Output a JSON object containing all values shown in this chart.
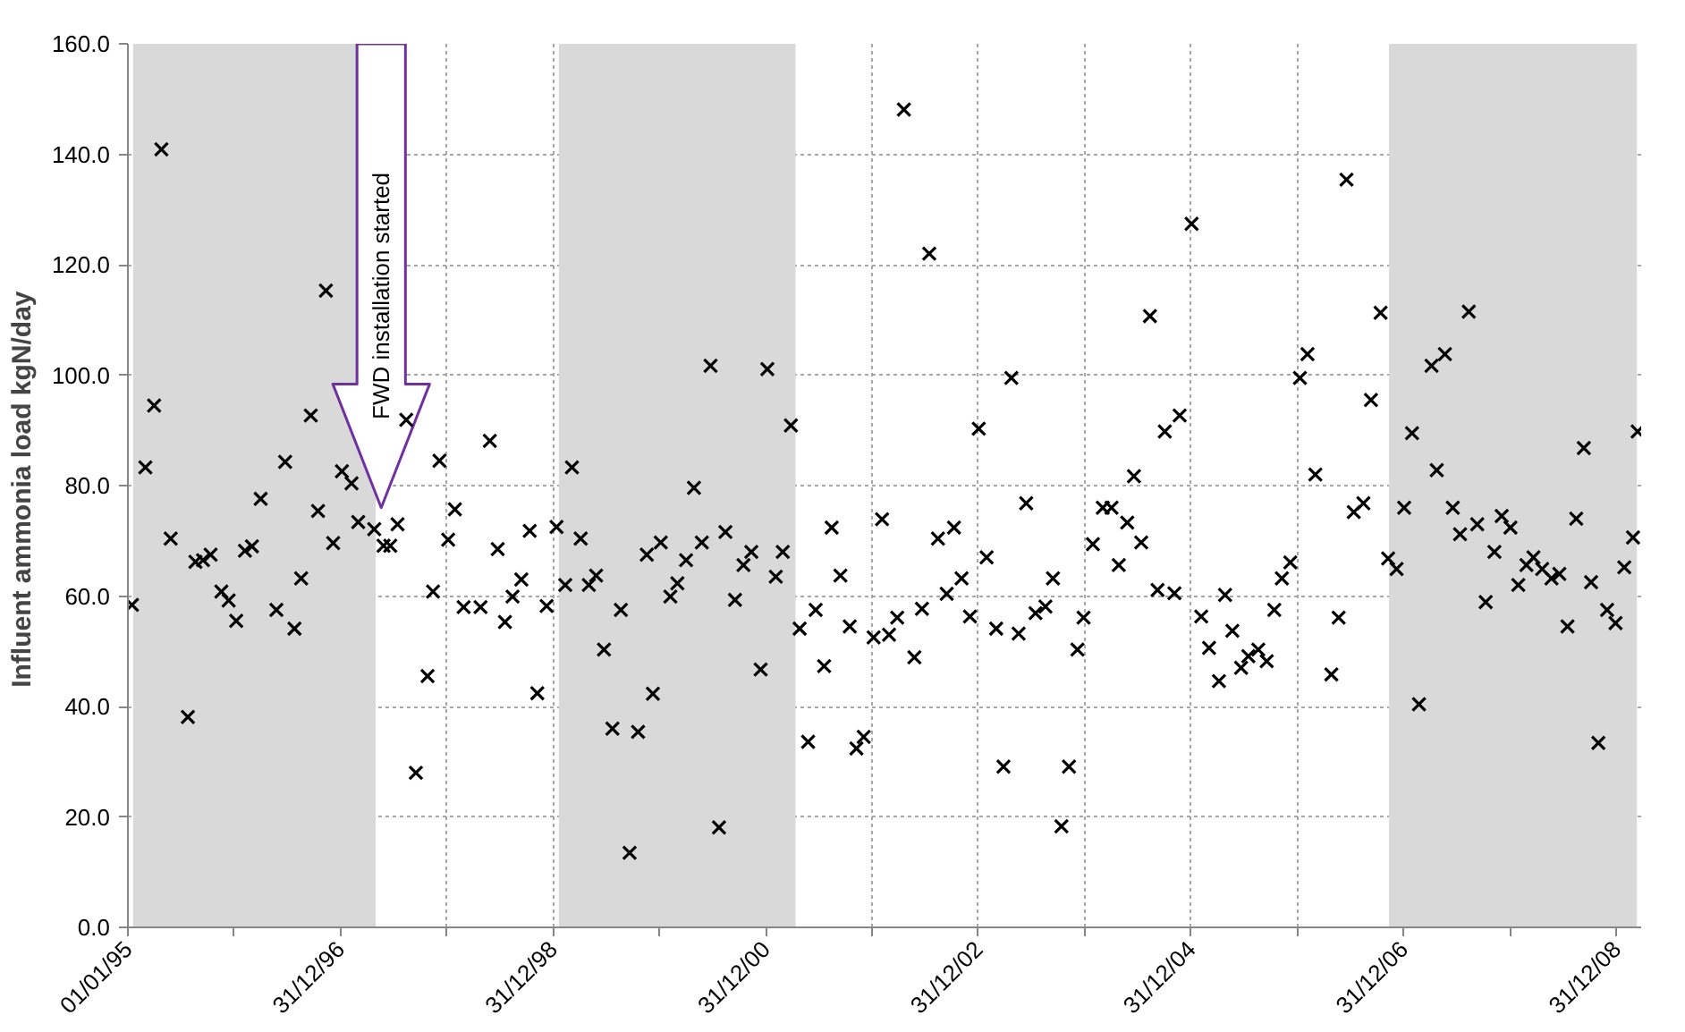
{
  "chart_data": {
    "type": "scatter",
    "ylabel": "Influent ammonia load  kgN/day",
    "x": [
      "1995-01-15",
      "1995-03-02",
      "1995-04-01",
      "1995-04-26",
      "1995-05-28",
      "1995-07-26",
      "1995-08-21",
      "1995-09-16",
      "1995-10-12",
      "1995-11-18",
      "1995-12-13",
      "1996-01-08",
      "1996-02-07",
      "1996-03-02",
      "1996-04-01",
      "1996-05-25",
      "1996-06-24",
      "1996-07-26",
      "1996-08-18",
      "1996-09-20",
      "1996-10-15",
      "1996-11-11",
      "1996-12-06",
      "1997-01-05",
      "1997-02-07",
      "1997-03-02",
      "1997-04-26",
      "1997-05-28",
      "1997-06-20",
      "1997-07-15",
      "1997-08-14",
      "1997-09-16",
      "1997-10-26",
      "1997-11-14",
      "1997-12-06",
      "1998-01-05",
      "1998-01-28",
      "1998-02-27",
      "1998-04-26",
      "1998-05-28",
      "1998-06-24",
      "1998-07-19",
      "1998-08-14",
      "1998-09-13",
      "1998-10-12",
      "1998-11-07",
      "1998-12-09",
      "1999-01-12",
      "1999-02-11",
      "1999-03-06",
      "1999-04-05",
      "1999-05-03",
      "1999-05-28",
      "1999-06-24",
      "1999-07-23",
      "1999-08-21",
      "1999-09-20",
      "1999-10-19",
      "1999-11-18",
      "1999-12-09",
      "2000-01-05",
      "2000-02-07",
      "2000-03-02",
      "2000-04-01",
      "2000-04-28",
      "2000-05-25",
      "2000-06-24",
      "2000-07-23",
      "2000-08-14",
      "2000-09-16",
      "2000-10-15",
      "2000-11-11",
      "2000-12-13",
      "2001-01-05",
      "2001-02-03",
      "2001-02-27",
      "2001-03-27",
      "2001-04-26",
      "2001-05-25",
      "2001-06-20",
      "2001-07-19",
      "2001-08-14",
      "2001-09-13",
      "2001-10-15",
      "2001-11-07",
      "2001-12-02",
      "2002-01-05",
      "2002-02-03",
      "2002-02-27",
      "2002-03-27",
      "2002-04-19",
      "2002-05-25",
      "2002-06-20",
      "2002-07-15",
      "2002-08-14",
      "2002-09-13",
      "2002-10-08",
      "2002-11-03",
      "2002-12-02",
      "2003-01-01",
      "2003-01-28",
      "2003-03-02",
      "2003-03-27",
      "2003-04-23",
      "2003-05-18",
      "2003-06-13",
      "2003-07-15",
      "2003-08-18",
      "2003-09-13",
      "2003-10-12",
      "2003-11-07",
      "2003-12-06",
      "2003-12-27",
      "2004-01-28",
      "2004-03-02",
      "2004-04-01",
      "2004-04-26",
      "2004-05-25",
      "2004-06-17",
      "2004-07-12",
      "2004-08-11",
      "2004-09-06",
      "2004-10-01",
      "2004-11-03",
      "2004-11-21",
      "2005-01-01",
      "2005-02-03",
      "2005-03-02",
      "2005-04-05",
      "2005-04-26",
      "2005-05-21",
      "2005-06-20",
      "2005-07-15",
      "2005-08-18",
      "2005-09-16",
      "2005-10-12",
      "2005-11-07",
      "2005-12-06",
      "2006-01-08",
      "2006-02-03",
      "2006-03-02",
      "2006-04-26",
      "2006-05-21",
      "2006-06-17",
      "2006-07-12",
      "2006-08-14",
      "2006-09-09",
      "2006-10-12",
      "2006-11-07",
      "2006-12-06",
      "2007-01-01",
      "2007-01-28",
      "2007-02-21",
      "2007-04-05",
      "2007-04-23",
      "2007-05-21",
      "2007-06-17",
      "2007-07-12",
      "2007-08-11",
      "2007-09-09",
      "2007-10-08",
      "2007-11-07",
      "2007-12-02",
      "2008-01-01",
      "2008-01-28",
      "2008-02-25",
      "2008-03-20",
      "2008-04-19",
      "2008-05-21",
      "2008-06-17",
      "2008-07-15",
      "2008-08-14",
      "2008-09-09",
      "2008-10-04",
      "2008-10-29",
      "2008-11-28",
      "2008-12-27",
      "2009-01-26",
      "2009-02-25",
      "2009-03-13"
    ],
    "values": [
      58.4,
      83.3,
      94.5,
      140.9,
      70.4,
      38.1,
      66.2,
      66.5,
      67.5,
      60.8,
      59.2,
      55.5,
      68.2,
      69.0,
      77.6,
      57.5,
      84.3,
      54.1,
      63.2,
      92.7,
      75.4,
      115.3,
      69.6,
      82.6,
      80.4,
      73.4,
      72.1,
      69.1,
      69.1,
      73.0,
      91.9,
      28.0,
      45.5,
      60.8,
      84.5,
      70.2,
      75.7,
      58.0,
      58.0,
      88.1,
      68.5,
      55.3,
      59.9,
      63.0,
      71.8,
      42.4,
      58.2,
      72.5,
      62.0,
      83.3,
      70.4,
      62.0,
      63.7,
      50.3,
      36.0,
      57.5,
      13.5,
      35.4,
      67.5,
      42.3,
      69.7,
      59.9,
      62.3,
      66.5,
      79.6,
      69.7,
      101.7,
      18.1,
      71.6,
      59.3,
      65.6,
      68.0,
      46.7,
      101.1,
      63.5,
      68.0,
      90.9,
      54.1,
      33.6,
      57.5,
      47.3,
      72.4,
      63.7,
      54.5,
      32.4,
      34.5,
      52.5,
      73.9,
      53.0,
      56.1,
      148.1,
      48.9,
      57.7,
      122.0,
      70.4,
      60.4,
      72.4,
      63.2,
      56.3,
      90.3,
      67.0,
      54.1,
      29.1,
      99.5,
      53.2,
      76.8,
      56.9,
      58.1,
      63.2,
      18.3,
      29.1,
      50.3,
      56.1,
      69.4,
      76.0,
      76.0,
      65.6,
      73.3,
      81.7,
      69.7,
      110.7,
      61.1,
      89.8,
      60.5,
      92.7,
      127.4,
      56.3,
      50.6,
      44.6,
      60.2,
      53.7,
      47.0,
      49.1,
      50.3,
      48.2,
      57.5,
      63.2,
      66.1,
      99.5,
      103.8,
      82.0,
      45.8,
      56.1,
      135.4,
      75.2,
      76.8,
      95.5,
      111.3,
      66.8,
      64.9,
      76.0,
      89.5,
      40.4,
      101.7,
      82.8,
      103.8,
      76.0,
      71.2,
      111.5,
      73.0,
      58.9,
      68.0,
      74.5,
      72.4,
      62.0,
      65.6,
      67.0,
      64.9,
      63.2,
      64.0,
      54.5,
      74.0,
      86.8,
      62.5,
      33.4,
      57.5,
      55.1,
      65.2,
      70.6,
      89.8
    ],
    "color": "#000000",
    "marker": "cross",
    "xlim": [
      "1995-01-01",
      "2009-03-25"
    ],
    "xticks": [
      {
        "value": "1995-01-01",
        "label": "01/01/95"
      },
      {
        "value": "1995-12-31",
        "label": null
      },
      {
        "value": "1996-12-31",
        "label": "31/12/96"
      },
      {
        "value": "1997-12-31",
        "label": null
      },
      {
        "value": "1998-12-31",
        "label": "31/12/98"
      },
      {
        "value": "1999-12-31",
        "label": null
      },
      {
        "value": "2000-12-31",
        "label": "31/12/00"
      },
      {
        "value": "2001-12-31",
        "label": null
      },
      {
        "value": "2002-12-31",
        "label": "31/12/02"
      },
      {
        "value": "2003-12-31",
        "label": null
      },
      {
        "value": "2004-12-31",
        "label": "31/12/04"
      },
      {
        "value": "2005-12-31",
        "label": null
      },
      {
        "value": "2006-12-31",
        "label": "31/12/06"
      },
      {
        "value": "2007-12-31",
        "label": null
      },
      {
        "value": "2008-12-31",
        "label": "31/12/08"
      }
    ],
    "ylim": [
      0,
      160
    ],
    "yticks": [
      {
        "value": 0,
        "label": "0.0"
      },
      {
        "value": 20,
        "label": "20.0"
      },
      {
        "value": 40,
        "label": "40.0"
      },
      {
        "value": 60,
        "label": "60.0"
      },
      {
        "value": 80,
        "label": "80.0"
      },
      {
        "value": 100,
        "label": "100.0"
      },
      {
        "value": 120,
        "label": "120.0"
      },
      {
        "value": 140,
        "label": "140.0"
      },
      {
        "value": 160,
        "label": "160.0"
      }
    ],
    "grid": true,
    "bands": [
      {
        "axis": "x",
        "from": "1995-01-19",
        "to": "1997-05-01",
        "color": "#d9d9d9"
      },
      {
        "axis": "x",
        "from": "1999-01-20",
        "to": "2001-04-12",
        "color": "#d9d9d9"
      },
      {
        "axis": "x",
        "from": "2006-11-10",
        "to": "2009-03-10",
        "color": "#d9d9d9"
      }
    ],
    "annotations": [
      {
        "text": "FWD installation started",
        "x": "1997-05-20",
        "y": 92
      }
    ]
  }
}
